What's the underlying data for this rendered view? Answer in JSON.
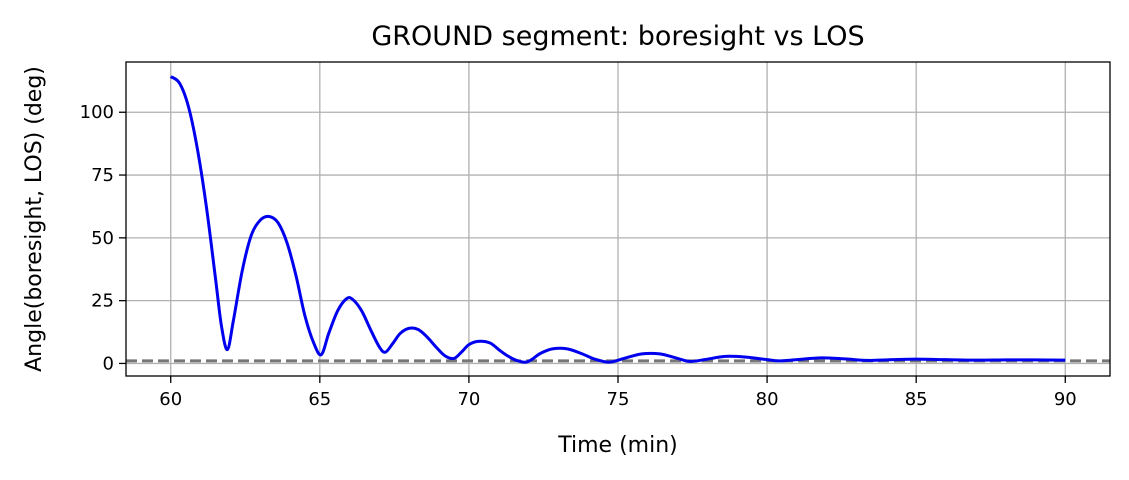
{
  "chart_data": {
    "type": "line",
    "title": "GROUND segment: boresight vs LOS",
    "xlabel": "Time (min)",
    "ylabel": "Angle(boresight, LOS) (deg)",
    "xlim": [
      58.5,
      91.5
    ],
    "ylim": [
      -5,
      120
    ],
    "x_ticks": [
      60,
      65,
      70,
      75,
      80,
      85,
      90
    ],
    "y_ticks": [
      0,
      25,
      50,
      75,
      100
    ],
    "grid": true,
    "legend": "none",
    "series": [
      {
        "color": "#0000ee",
        "style": "solid",
        "x": [
          60.0,
          60.3,
          60.6,
          60.9,
          61.2,
          61.5,
          61.7,
          61.9,
          62.1,
          62.4,
          62.7,
          63.0,
          63.3,
          63.6,
          63.9,
          64.2,
          64.5,
          64.8,
          65.05,
          65.3,
          65.6,
          65.9,
          66.1,
          66.4,
          66.7,
          67.0,
          67.2,
          67.45,
          67.7,
          68.0,
          68.3,
          68.6,
          68.9,
          69.2,
          69.5,
          69.75,
          70.0,
          70.3,
          70.7,
          71.0,
          71.3,
          71.6,
          71.9,
          72.1,
          72.4,
          72.8,
          73.3,
          73.8,
          74.2,
          74.7,
          75.2,
          75.8,
          76.4,
          77.0,
          77.4,
          77.9,
          78.6,
          79.3,
          80.0,
          80.4,
          81.0,
          81.8,
          82.6,
          83.4,
          84.2,
          85.0,
          86.0,
          87.0,
          88.0,
          89.0,
          90.0
        ],
        "y": [
          114.2,
          111.5,
          102.0,
          85.0,
          62.0,
          34.0,
          15.0,
          5.5,
          17.0,
          37.0,
          51.0,
          57.0,
          58.5,
          56.0,
          48.0,
          35.0,
          19.0,
          8.0,
          3.5,
          12.0,
          21.0,
          25.8,
          25.5,
          21.0,
          13.5,
          6.5,
          4.5,
          8.0,
          12.0,
          14.0,
          13.5,
          10.5,
          6.5,
          3.0,
          2.0,
          4.5,
          7.5,
          8.8,
          8.2,
          5.5,
          3.0,
          1.2,
          0.5,
          1.5,
          4.0,
          5.8,
          5.8,
          3.8,
          1.8,
          0.5,
          2.0,
          3.8,
          3.8,
          2.0,
          0.8,
          1.5,
          2.8,
          2.5,
          1.5,
          1.0,
          1.5,
          2.2,
          1.8,
          1.2,
          1.5,
          1.7,
          1.5,
          1.3,
          1.4,
          1.4,
          1.3
        ]
      },
      {
        "color": "#777777",
        "style": "dashed",
        "x": [
          58.5,
          91.5
        ],
        "y": [
          1.0,
          1.0
        ]
      }
    ]
  }
}
